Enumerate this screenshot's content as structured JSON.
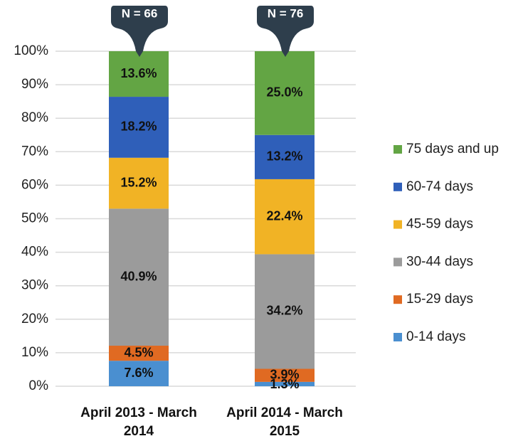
{
  "chart_data": {
    "type": "stacked_bar",
    "categories": [
      "April 2013 - March 2014",
      "April 2014 - March 2015"
    ],
    "series": [
      {
        "name": "0-14 days",
        "color": "#4a8fd0",
        "values": [
          7.6,
          1.3
        ],
        "value_labels": [
          "7.6%",
          "1.3%"
        ]
      },
      {
        "name": "15-29 days",
        "color": "#e06a22",
        "values": [
          4.5,
          3.9
        ],
        "value_labels": [
          "4.5%",
          "3.9%"
        ]
      },
      {
        "name": "30-44 days",
        "color": "#9b9b9b",
        "values": [
          40.9,
          34.2
        ],
        "value_labels": [
          "40.9%",
          "34.2%"
        ]
      },
      {
        "name": "45-59 days",
        "color": "#f1b325",
        "values": [
          15.2,
          22.4
        ],
        "value_labels": [
          "15.2%",
          "22.4%"
        ]
      },
      {
        "name": "60-74 days",
        "color": "#2f5fb9",
        "values": [
          18.2,
          13.2
        ],
        "value_labels": [
          "18.2%",
          "13.2%"
        ]
      },
      {
        "name": "75 days and up",
        "color": "#63a544",
        "values": [
          13.6,
          25.0
        ],
        "value_labels": [
          "13.6%",
          "25.0%"
        ]
      }
    ],
    "annotations": [
      "N = 66",
      "N = 76"
    ],
    "ylim": [
      0,
      100
    ],
    "yticks": [
      {
        "value": 0,
        "label": "0%"
      },
      {
        "value": 10,
        "label": "10%"
      },
      {
        "value": 20,
        "label": "20%"
      },
      {
        "value": 30,
        "label": "30%"
      },
      {
        "value": 40,
        "label": "40%"
      },
      {
        "value": 50,
        "label": "50%"
      },
      {
        "value": 60,
        "label": "60%"
      },
      {
        "value": 70,
        "label": "70%"
      },
      {
        "value": 80,
        "label": "80%"
      },
      {
        "value": 90,
        "label": "90%"
      },
      {
        "value": 100,
        "label": "100%"
      }
    ],
    "grid": true,
    "legend": "right"
  }
}
